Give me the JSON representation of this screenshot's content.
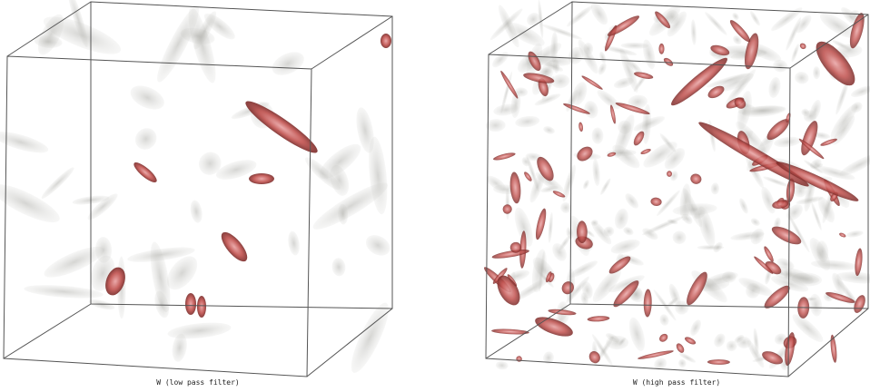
{
  "panels": [
    {
      "caption": "W (low pass filter)"
    },
    {
      "caption": "W (high pass filter)"
    }
  ]
}
